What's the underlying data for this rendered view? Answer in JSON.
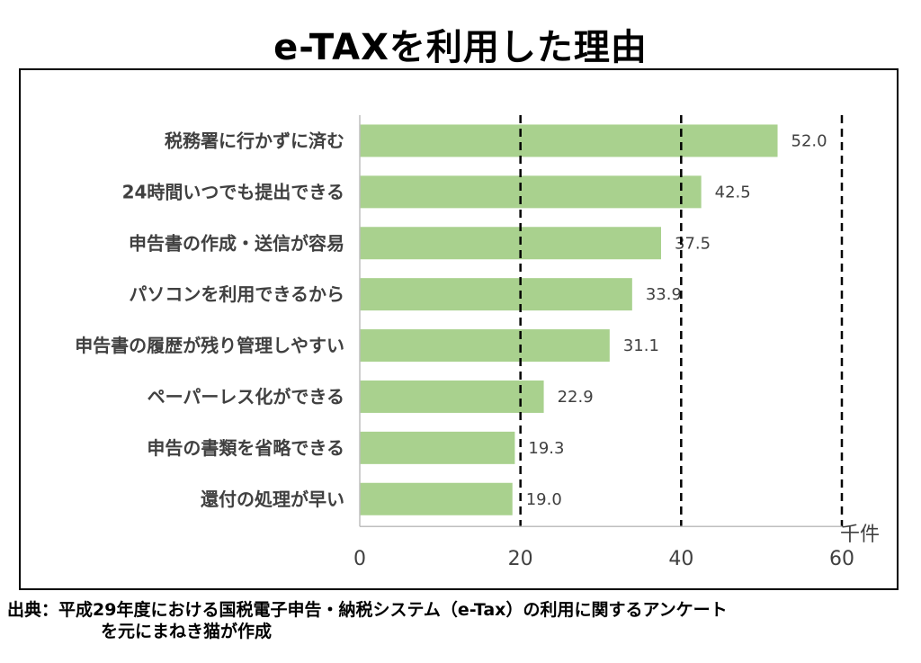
{
  "title": "e-TAXを利用した理由",
  "source": {
    "line1": "出典：平成29年度における国税電子申告・納税システム（e-Tax）の利用に関するアンケート",
    "line2": "を元にまねき猫が作成"
  },
  "chart_data": {
    "type": "bar",
    "orientation": "horizontal",
    "title": "e-TAXを利用した理由",
    "categories": [
      "税務署に行かずに済む",
      "24時間いつでも提出できる",
      "申告書の作成・送信が容易",
      "パソコンを利用できるから",
      "申告書の履歴が残り管理しやすい",
      "ペーパーレス化ができる",
      "申告の書類を省略できる",
      "還付の処理が早い"
    ],
    "values": [
      52.0,
      42.5,
      37.5,
      33.9,
      31.1,
      22.9,
      19.3,
      19.0
    ],
    "value_labels": [
      "52.0",
      "42.5",
      "37.5",
      "33.9",
      "31.1",
      "22.9",
      "19.3",
      "19.0"
    ],
    "xlim": [
      0,
      60
    ],
    "xticks": [
      "0",
      "20",
      "40",
      "60"
    ],
    "xunit": "千件",
    "gridlines": "dashed vertical at 20, 40, 60",
    "bar_color": "#a9d18e"
  }
}
